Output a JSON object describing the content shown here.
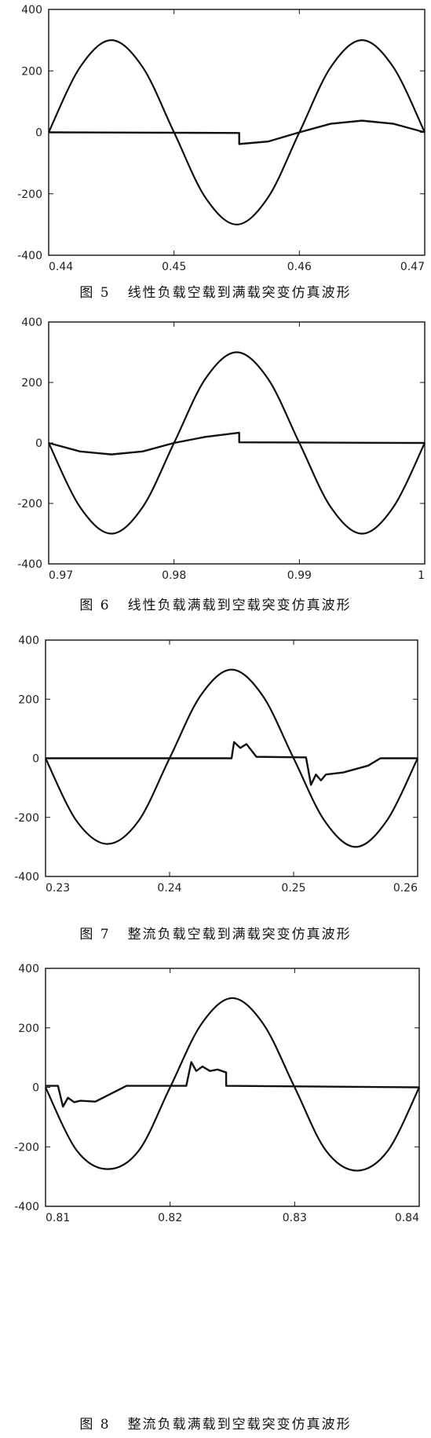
{
  "chart_data": [
    {
      "type": "line",
      "figure_number": "图 5",
      "title": "线性负载空载到满载突变仿真波形",
      "xlim": [
        0.44,
        0.47
      ],
      "ylim": [
        -400,
        400
      ],
      "x_ticks": [
        "0.44",
        "0.45",
        "0.46",
        "0.47"
      ],
      "y_ticks": [
        "400",
        "200",
        "0",
        "-200",
        "-400"
      ],
      "grid": false,
      "series": [
        {
          "values": [
            [
              0.44,
              0
            ],
            [
              0.4425,
              212
            ],
            [
              0.445,
              300
            ],
            [
              0.4475,
              212
            ],
            [
              0.45,
              0
            ],
            [
              0.4525,
              -212
            ],
            [
              0.455,
              -300
            ],
            [
              0.4575,
              -212
            ],
            [
              0.46,
              0
            ],
            [
              0.4625,
              212
            ],
            [
              0.465,
              300
            ],
            [
              0.4675,
              212
            ],
            [
              0.47,
              0
            ]
          ]
        },
        {
          "values": [
            [
              0.44,
              0
            ],
            [
              0.4552,
              -2
            ],
            [
              0.4552,
              -38
            ],
            [
              0.4575,
              -30
            ],
            [
              0.46,
              0
            ],
            [
              0.4625,
              28
            ],
            [
              0.465,
              38
            ],
            [
              0.4675,
              28
            ],
            [
              0.47,
              0
            ]
          ]
        }
      ]
    },
    {
      "type": "line",
      "figure_number": "图 6",
      "title": "线性负载满载到空载突变仿真波形",
      "xlim": [
        0.97,
        1.0
      ],
      "ylim": [
        -400,
        400
      ],
      "x_ticks": [
        "0.97",
        "0.98",
        "0.99",
        "1"
      ],
      "y_ticks": [
        "400",
        "200",
        "0",
        "-200",
        "-400"
      ],
      "grid": false,
      "series": [
        {
          "values": [
            [
              0.97,
              0
            ],
            [
              0.9725,
              -212
            ],
            [
              0.975,
              -300
            ],
            [
              0.9775,
              -212
            ],
            [
              0.98,
              0
            ],
            [
              0.9825,
              212
            ],
            [
              0.985,
              300
            ],
            [
              0.9875,
              212
            ],
            [
              0.99,
              0
            ],
            [
              0.9925,
              -212
            ],
            [
              0.995,
              -300
            ],
            [
              0.9975,
              -212
            ],
            [
              1.0,
              0
            ]
          ]
        },
        {
          "values": [
            [
              0.97,
              0
            ],
            [
              0.9725,
              -28
            ],
            [
              0.975,
              -38
            ],
            [
              0.9775,
              -28
            ],
            [
              0.98,
              0
            ],
            [
              0.9825,
              20
            ],
            [
              0.9852,
              34
            ],
            [
              0.9852,
              2
            ],
            [
              1.0,
              0
            ]
          ]
        }
      ]
    },
    {
      "type": "line",
      "figure_number": "图 7",
      "title": "整流负载空载到满载突变仿真波形",
      "xlim": [
        0.23,
        0.26
      ],
      "ylim": [
        -400,
        400
      ],
      "x_ticks": [
        "0.23",
        "0.24",
        "0.25",
        "0.26"
      ],
      "y_ticks": [
        "400",
        "200",
        "0",
        "-200",
        "-400"
      ],
      "grid": false,
      "series": [
        {
          "values": [
            [
              0.23,
              0
            ],
            [
              0.2325,
              -212
            ],
            [
              0.235,
              -290
            ],
            [
              0.2375,
              -212
            ],
            [
              0.24,
              0
            ],
            [
              0.2425,
              212
            ],
            [
              0.245,
              300
            ],
            [
              0.2475,
              212
            ],
            [
              0.25,
              0
            ],
            [
              0.2525,
              -212
            ],
            [
              0.255,
              -300
            ],
            [
              0.2575,
              -212
            ],
            [
              0.26,
              0
            ]
          ]
        },
        {
          "values": [
            [
              0.23,
              0
            ],
            [
              0.245,
              0
            ],
            [
              0.2452,
              55
            ],
            [
              0.2457,
              35
            ],
            [
              0.2462,
              48
            ],
            [
              0.247,
              5
            ],
            [
              0.251,
              3
            ],
            [
              0.2514,
              -90
            ],
            [
              0.2518,
              -55
            ],
            [
              0.2522,
              -75
            ],
            [
              0.2526,
              -55
            ],
            [
              0.254,
              -48
            ],
            [
              0.256,
              -25
            ],
            [
              0.257,
              0
            ],
            [
              0.26,
              0
            ]
          ]
        }
      ]
    },
    {
      "type": "line",
      "figure_number": "图 8",
      "title": "整流负载满载到空载突变仿真波形",
      "xlim": [
        0.81,
        0.84
      ],
      "ylim": [
        -400,
        400
      ],
      "x_ticks": [
        "0.81",
        "0.82",
        "0.83",
        "0.84"
      ],
      "y_ticks": [
        "400",
        "200",
        "0",
        "-200",
        "-400"
      ],
      "grid": false,
      "series": [
        {
          "values": [
            [
              0.81,
              0
            ],
            [
              0.8125,
              -212
            ],
            [
              0.815,
              -275
            ],
            [
              0.8175,
              -212
            ],
            [
              0.82,
              0
            ],
            [
              0.8225,
              212
            ],
            [
              0.825,
              300
            ],
            [
              0.8275,
              212
            ],
            [
              0.83,
              0
            ],
            [
              0.8325,
              -212
            ],
            [
              0.835,
              -280
            ],
            [
              0.8375,
              -212
            ],
            [
              0.84,
              0
            ]
          ]
        },
        {
          "values": [
            [
              0.81,
              5
            ],
            [
              0.811,
              5
            ],
            [
              0.8114,
              -65
            ],
            [
              0.8118,
              -35
            ],
            [
              0.8123,
              -50
            ],
            [
              0.8128,
              -45
            ],
            [
              0.814,
              -48
            ],
            [
              0.8165,
              5
            ],
            [
              0.8213,
              5
            ],
            [
              0.8217,
              85
            ],
            [
              0.8221,
              55
            ],
            [
              0.8226,
              70
            ],
            [
              0.8232,
              55
            ],
            [
              0.8238,
              60
            ],
            [
              0.8245,
              50
            ],
            [
              0.8245,
              5
            ],
            [
              0.84,
              0
            ]
          ]
        }
      ]
    }
  ]
}
